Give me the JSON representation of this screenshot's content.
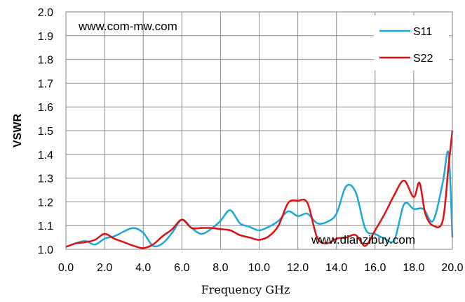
{
  "chart_data": {
    "type": "line",
    "title": "",
    "xlabel": "Frequency GHz",
    "ylabel": "VSWR",
    "xlim": [
      0.0,
      20.0
    ],
    "ylim": [
      1.0,
      2.0
    ],
    "x_ticks": [
      "0.0",
      "2.0",
      "4.0",
      "6.0",
      "8.0",
      "10.0",
      "12.0",
      "14.0",
      "16.0",
      "18.0",
      "20.0"
    ],
    "y_ticks": [
      "1.0",
      "1.1",
      "1.2",
      "1.3",
      "1.4",
      "1.5",
      "1.6",
      "1.7",
      "1.8",
      "1.9",
      "2.0"
    ],
    "grid": true,
    "legend_position": "top-right",
    "watermarks": [
      "www.com-mw.com",
      "www.dianzibuy.com"
    ],
    "series": [
      {
        "name": "S11",
        "color": "#1aa8dc",
        "points": [
          [
            0.0,
            1.01
          ],
          [
            0.5,
            1.025
          ],
          [
            1.0,
            1.035
          ],
          [
            1.5,
            1.02
          ],
          [
            2.0,
            1.045
          ],
          [
            2.5,
            1.055
          ],
          [
            3.0,
            1.075
          ],
          [
            3.5,
            1.09
          ],
          [
            4.0,
            1.07
          ],
          [
            4.5,
            1.015
          ],
          [
            5.0,
            1.025
          ],
          [
            5.5,
            1.07
          ],
          [
            6.0,
            1.125
          ],
          [
            6.5,
            1.09
          ],
          [
            7.0,
            1.065
          ],
          [
            7.5,
            1.085
          ],
          [
            8.0,
            1.12
          ],
          [
            8.5,
            1.165
          ],
          [
            9.0,
            1.11
          ],
          [
            9.5,
            1.095
          ],
          [
            10.0,
            1.08
          ],
          [
            10.5,
            1.095
          ],
          [
            11.0,
            1.12
          ],
          [
            11.5,
            1.16
          ],
          [
            12.0,
            1.14
          ],
          [
            12.5,
            1.15
          ],
          [
            13.0,
            1.11
          ],
          [
            13.5,
            1.115
          ],
          [
            14.0,
            1.15
          ],
          [
            14.5,
            1.265
          ],
          [
            15.0,
            1.24
          ],
          [
            15.5,
            1.085
          ],
          [
            16.0,
            1.065
          ],
          [
            16.5,
            1.045
          ],
          [
            17.0,
            1.04
          ],
          [
            17.5,
            1.19
          ],
          [
            18.0,
            1.17
          ],
          [
            18.5,
            1.17
          ],
          [
            19.0,
            1.12
          ],
          [
            19.5,
            1.28
          ],
          [
            19.8,
            1.405
          ],
          [
            20.0,
            1.05
          ]
        ]
      },
      {
        "name": "S22",
        "color": "#e01010",
        "points": [
          [
            0.0,
            1.01
          ],
          [
            0.5,
            1.025
          ],
          [
            1.0,
            1.03
          ],
          [
            1.5,
            1.04
          ],
          [
            2.0,
            1.065
          ],
          [
            2.5,
            1.045
          ],
          [
            3.0,
            1.03
          ],
          [
            3.5,
            1.015
          ],
          [
            4.0,
            1.005
          ],
          [
            4.5,
            1.02
          ],
          [
            5.0,
            1.055
          ],
          [
            5.5,
            1.085
          ],
          [
            6.0,
            1.125
          ],
          [
            6.5,
            1.09
          ],
          [
            7.0,
            1.09
          ],
          [
            7.5,
            1.09
          ],
          [
            8.0,
            1.085
          ],
          [
            8.5,
            1.08
          ],
          [
            9.0,
            1.06
          ],
          [
            9.5,
            1.05
          ],
          [
            10.0,
            1.04
          ],
          [
            10.5,
            1.055
          ],
          [
            11.0,
            1.1
          ],
          [
            11.5,
            1.195
          ],
          [
            12.0,
            1.205
          ],
          [
            12.5,
            1.195
          ],
          [
            13.0,
            1.05
          ],
          [
            13.5,
            1.025
          ],
          [
            14.0,
            1.045
          ],
          [
            14.5,
            1.05
          ],
          [
            15.0,
            1.06
          ],
          [
            15.5,
            1.015
          ],
          [
            16.0,
            1.08
          ],
          [
            16.5,
            1.15
          ],
          [
            17.0,
            1.23
          ],
          [
            17.5,
            1.29
          ],
          [
            18.0,
            1.22
          ],
          [
            18.3,
            1.28
          ],
          [
            18.6,
            1.15
          ],
          [
            19.0,
            1.1
          ],
          [
            19.5,
            1.12
          ],
          [
            19.8,
            1.35
          ],
          [
            20.0,
            1.5
          ]
        ]
      }
    ]
  }
}
